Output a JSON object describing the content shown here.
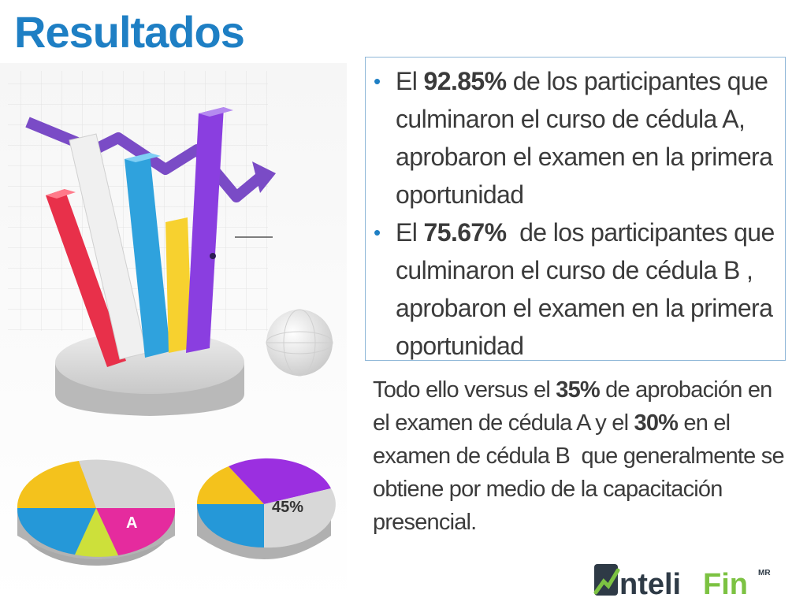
{
  "title": "Resultados",
  "bullets": [
    {
      "pre": "El ",
      "bold": "92.85%",
      "post": " de los participantes que culminaron el curso de cédula A, aprobaron el examen en la primera oportunidad"
    },
    {
      "pre": "El ",
      "bold": "75.67%",
      "post": "  de los participantes que culminaron el curso de cédula B , aprobaron el examen en la primera oportunidad"
    }
  ],
  "paragraph": {
    "p1": "Todo ello versus el ",
    "b1": "35%",
    "p2": " de aprobación en el examen de cédula A y el ",
    "b2": "30%",
    "p3": " en el  examen de cédula B  que generalmente se obtiene por medio de la capacitación presencial."
  },
  "illustration": {
    "pie_left_label": "A",
    "pie_right_label": "45%"
  },
  "logo": {
    "brand_a": "nteli",
    "brand_b": "Fin",
    "mark": "MR"
  },
  "colors": {
    "title": "#1e7fc4",
    "text": "#3b3b3b",
    "box_border": "#8fb7d8",
    "logo_dark": "#2e3a46",
    "logo_green": "#7cc242"
  }
}
